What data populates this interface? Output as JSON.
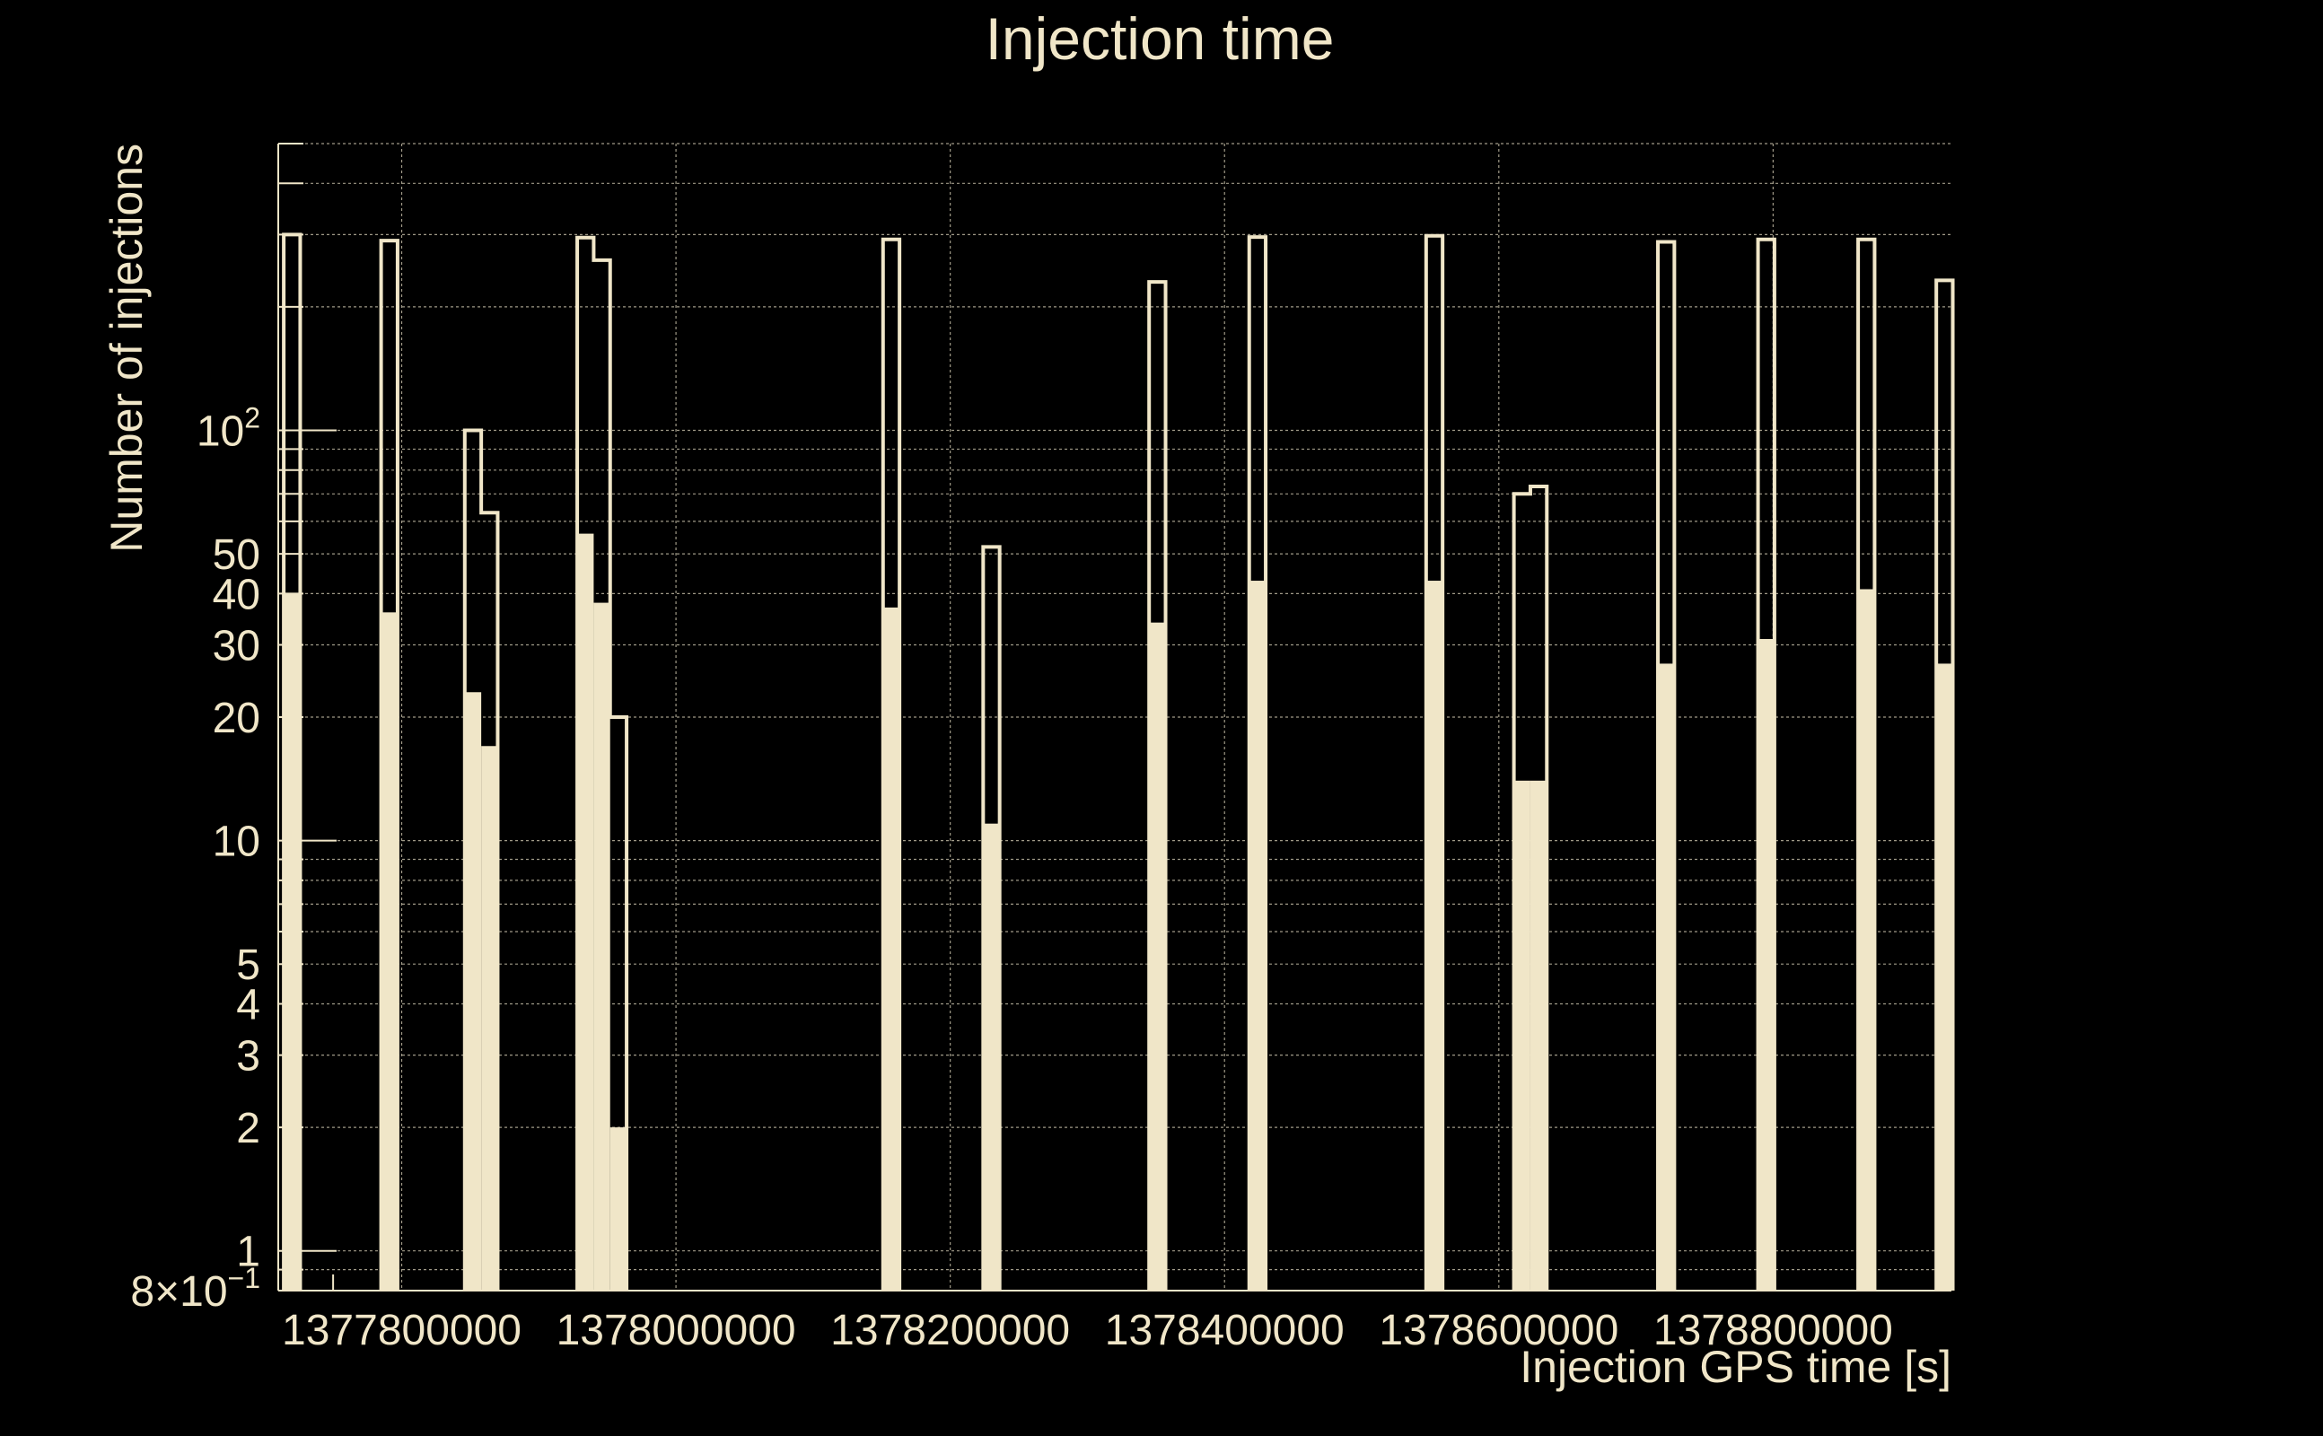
{
  "colors": {
    "background": "#000000",
    "foreground": "#f0e6c8",
    "grid": "#a09a88"
  },
  "chart_data": {
    "type": "bar",
    "title": "Injection time",
    "xlabel": "Injection GPS time [s]",
    "ylabel": "Number of injections",
    "yscale": "log",
    "xlim": [
      1377710000,
      1378930000
    ],
    "ylim": [
      0.8,
      500
    ],
    "grid": true,
    "legend": "none",
    "x_ticks": [
      1377800000,
      1378000000,
      1378200000,
      1378400000,
      1378600000,
      1378800000
    ],
    "x_tick_labels": [
      "1377800000",
      "1378000000",
      "1378200000",
      "1378400000",
      "1378600000",
      "1378800000"
    ],
    "y_ticks": [
      0.8,
      1,
      2,
      3,
      4,
      5,
      10,
      20,
      30,
      40,
      50,
      100
    ],
    "y_tick_labels": [
      {
        "base": "8×10",
        "exp": "−1"
      },
      {
        "base": "1"
      },
      {
        "base": "2"
      },
      {
        "base": "3"
      },
      {
        "base": "4"
      },
      {
        "base": "5"
      },
      {
        "base": "10"
      },
      {
        "base": "20"
      },
      {
        "base": "30"
      },
      {
        "base": "40"
      },
      {
        "base": "50"
      },
      {
        "base": "10",
        "exp": "2"
      }
    ],
    "bin_width": 12000,
    "series": [
      {
        "style": "outline",
        "bins": [
          {
            "x": 1377714000,
            "value": 300
          },
          {
            "x": 1377785000,
            "value": 290
          },
          {
            "x": 1377846000,
            "value": 100
          },
          {
            "x": 1377858000,
            "value": 63
          },
          {
            "x": 1377928000,
            "value": 295
          },
          {
            "x": 1377940000,
            "value": 260
          },
          {
            "x": 1377952000,
            "value": 20
          },
          {
            "x": 1378151000,
            "value": 292
          },
          {
            "x": 1378224000,
            "value": 52
          },
          {
            "x": 1378345000,
            "value": 230
          },
          {
            "x": 1378418000,
            "value": 296
          },
          {
            "x": 1378547000,
            "value": 298
          },
          {
            "x": 1378611000,
            "value": 70
          },
          {
            "x": 1378623000,
            "value": 73
          },
          {
            "x": 1378716000,
            "value": 288
          },
          {
            "x": 1378789000,
            "value": 292
          },
          {
            "x": 1378862000,
            "value": 292
          },
          {
            "x": 1378919000,
            "value": 232
          }
        ]
      },
      {
        "style": "filled",
        "bins": [
          {
            "x": 1377714000,
            "value": 40
          },
          {
            "x": 1377785000,
            "value": 36
          },
          {
            "x": 1377846000,
            "value": 23
          },
          {
            "x": 1377858000,
            "value": 17
          },
          {
            "x": 1377928000,
            "value": 56
          },
          {
            "x": 1377940000,
            "value": 38
          },
          {
            "x": 1377952000,
            "value": 2
          },
          {
            "x": 1378151000,
            "value": 37
          },
          {
            "x": 1378224000,
            "value": 11
          },
          {
            "x": 1378345000,
            "value": 34
          },
          {
            "x": 1378418000,
            "value": 43
          },
          {
            "x": 1378547000,
            "value": 43
          },
          {
            "x": 1378611000,
            "value": 14
          },
          {
            "x": 1378623000,
            "value": 14
          },
          {
            "x": 1378716000,
            "value": 27
          },
          {
            "x": 1378789000,
            "value": 31
          },
          {
            "x": 1378862000,
            "value": 41
          },
          {
            "x": 1378919000,
            "value": 27
          }
        ]
      }
    ]
  }
}
